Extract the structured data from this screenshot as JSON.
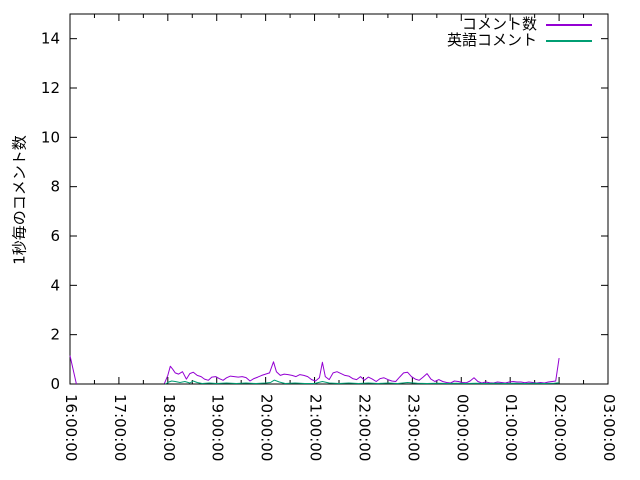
{
  "figure": {
    "background": "#ffffff",
    "axis_color": "#000000",
    "text_color": "#000000"
  },
  "chart_data": {
    "type": "line",
    "title": "",
    "xlabel": "",
    "ylabel": "1秒毎のコメント数",
    "xlim": [
      16,
      27
    ],
    "ylim": [
      0,
      15
    ],
    "grid": false,
    "legend_position": "top-right-inside",
    "x_tick_hours": [
      16,
      17,
      18,
      19,
      20,
      21,
      22,
      23,
      24,
      25,
      26,
      27
    ],
    "x_tick_labels": [
      "16:00:00",
      "17:00:00",
      "18:00:00",
      "19:00:00",
      "20:00:00",
      "21:00:00",
      "22:00:00",
      "23:00:00",
      "00:00:00",
      "01:00:00",
      "02:00:00",
      "03:00:00"
    ],
    "x_minor_tick_interval": 0.5,
    "y_ticks": [
      0,
      2,
      4,
      6,
      8,
      10,
      12,
      14
    ],
    "y_tick_labels": [
      "0",
      "2",
      "4",
      "6",
      "8",
      "10",
      "12",
      "14"
    ],
    "series": [
      {
        "name": "コメント数",
        "color": "#9400d3",
        "points": [
          [
            16.0,
            1.15
          ],
          [
            16.13,
            0.0
          ],
          null,
          [
            17.93,
            0.02
          ],
          [
            18.0,
            0.35
          ],
          [
            18.05,
            0.72
          ],
          [
            18.1,
            0.6
          ],
          [
            18.15,
            0.45
          ],
          [
            18.22,
            0.4
          ],
          [
            18.3,
            0.5
          ],
          [
            18.38,
            0.2
          ],
          [
            18.45,
            0.42
          ],
          [
            18.52,
            0.48
          ],
          [
            18.6,
            0.35
          ],
          [
            18.68,
            0.3
          ],
          [
            18.75,
            0.2
          ],
          [
            18.83,
            0.15
          ],
          [
            18.9,
            0.28
          ],
          [
            18.98,
            0.3
          ],
          [
            19.05,
            0.22
          ],
          [
            19.13,
            0.15
          ],
          [
            19.2,
            0.25
          ],
          [
            19.28,
            0.32
          ],
          [
            19.36,
            0.3
          ],
          [
            19.44,
            0.28
          ],
          [
            19.52,
            0.3
          ],
          [
            19.6,
            0.26
          ],
          [
            19.68,
            0.12
          ],
          [
            19.76,
            0.22
          ],
          [
            19.84,
            0.28
          ],
          [
            19.92,
            0.35
          ],
          [
            20.0,
            0.4
          ],
          [
            20.08,
            0.45
          ],
          [
            20.16,
            0.9
          ],
          [
            20.22,
            0.5
          ],
          [
            20.3,
            0.35
          ],
          [
            20.38,
            0.4
          ],
          [
            20.46,
            0.38
          ],
          [
            20.54,
            0.35
          ],
          [
            20.62,
            0.3
          ],
          [
            20.7,
            0.38
          ],
          [
            20.78,
            0.35
          ],
          [
            20.86,
            0.3
          ],
          [
            20.94,
            0.18
          ],
          [
            21.02,
            0.12
          ],
          [
            21.1,
            0.25
          ],
          [
            21.16,
            0.88
          ],
          [
            21.22,
            0.3
          ],
          [
            21.3,
            0.18
          ],
          [
            21.38,
            0.45
          ],
          [
            21.46,
            0.5
          ],
          [
            21.54,
            0.42
          ],
          [
            21.62,
            0.35
          ],
          [
            21.7,
            0.32
          ],
          [
            21.78,
            0.22
          ],
          [
            21.86,
            0.18
          ],
          [
            21.94,
            0.3
          ],
          [
            22.02,
            0.15
          ],
          [
            22.1,
            0.28
          ],
          [
            22.18,
            0.2
          ],
          [
            22.26,
            0.1
          ],
          [
            22.34,
            0.22
          ],
          [
            22.42,
            0.25
          ],
          [
            22.5,
            0.18
          ],
          [
            22.58,
            0.12
          ],
          [
            22.66,
            0.1
          ],
          [
            22.74,
            0.28
          ],
          [
            22.82,
            0.45
          ],
          [
            22.9,
            0.48
          ],
          [
            22.98,
            0.3
          ],
          [
            23.06,
            0.2
          ],
          [
            23.14,
            0.15
          ],
          [
            23.22,
            0.28
          ],
          [
            23.3,
            0.42
          ],
          [
            23.38,
            0.2
          ],
          [
            23.46,
            0.1
          ],
          [
            23.54,
            0.18
          ],
          [
            23.62,
            0.1
          ],
          [
            23.7,
            0.06
          ],
          [
            23.78,
            0.04
          ],
          [
            23.86,
            0.12
          ],
          [
            23.94,
            0.1
          ],
          [
            24.02,
            0.06
          ],
          [
            24.1,
            0.05
          ],
          [
            24.18,
            0.12
          ],
          [
            24.26,
            0.25
          ],
          [
            24.34,
            0.1
          ],
          [
            24.42,
            0.04
          ],
          [
            24.5,
            0.08
          ],
          [
            24.58,
            0.05
          ],
          [
            24.66,
            0.04
          ],
          [
            24.74,
            0.08
          ],
          [
            24.82,
            0.06
          ],
          [
            24.9,
            0.04
          ],
          [
            24.98,
            0.08
          ],
          [
            25.06,
            0.1
          ],
          [
            25.14,
            0.08
          ],
          [
            25.22,
            0.08
          ],
          [
            25.3,
            0.05
          ],
          [
            25.38,
            0.08
          ],
          [
            25.46,
            0.06
          ],
          [
            25.54,
            0.04
          ],
          [
            25.62,
            0.06
          ],
          [
            25.7,
            0.04
          ],
          [
            25.78,
            0.08
          ],
          [
            25.86,
            0.1
          ],
          [
            25.93,
            0.12
          ],
          [
            26.0,
            1.05
          ]
        ]
      },
      {
        "name": "英語コメント",
        "color": "#009e73",
        "points": [
          [
            17.95,
            0.0
          ],
          [
            18.02,
            0.08
          ],
          [
            18.08,
            0.12
          ],
          [
            18.15,
            0.1
          ],
          [
            18.25,
            0.06
          ],
          [
            18.35,
            0.1
          ],
          [
            18.45,
            0.04
          ],
          [
            18.52,
            0.12
          ],
          [
            18.6,
            0.06
          ],
          [
            18.7,
            0.02
          ],
          [
            18.85,
            0.04
          ],
          [
            19.0,
            0.02
          ],
          [
            19.2,
            0.04
          ],
          [
            19.4,
            0.02
          ],
          [
            19.6,
            0.04
          ],
          [
            19.8,
            0.02
          ],
          [
            20.0,
            0.04
          ],
          [
            20.1,
            0.06
          ],
          [
            20.18,
            0.16
          ],
          [
            20.28,
            0.08
          ],
          [
            20.4,
            0.02
          ],
          [
            20.6,
            0.04
          ],
          [
            20.8,
            0.02
          ],
          [
            21.0,
            0.02
          ],
          [
            21.16,
            0.1
          ],
          [
            21.3,
            0.04
          ],
          [
            21.5,
            0.02
          ],
          [
            21.7,
            0.04
          ],
          [
            21.9,
            0.02
          ],
          [
            22.1,
            0.04
          ],
          [
            22.3,
            0.02
          ],
          [
            22.5,
            0.04
          ],
          [
            22.7,
            0.02
          ],
          [
            22.9,
            0.06
          ],
          [
            23.1,
            0.03
          ],
          [
            23.3,
            0.02
          ],
          [
            23.5,
            0.03
          ],
          [
            23.7,
            0.02
          ],
          [
            23.9,
            0.03
          ],
          [
            24.1,
            0.02
          ],
          [
            24.3,
            0.03
          ],
          [
            24.5,
            0.02
          ],
          [
            24.7,
            0.03
          ],
          [
            24.9,
            0.02
          ],
          [
            25.1,
            0.03
          ],
          [
            25.3,
            0.02
          ],
          [
            25.5,
            0.03
          ],
          [
            25.7,
            0.02
          ],
          [
            25.9,
            0.03
          ],
          [
            26.0,
            0.05
          ]
        ]
      }
    ]
  }
}
